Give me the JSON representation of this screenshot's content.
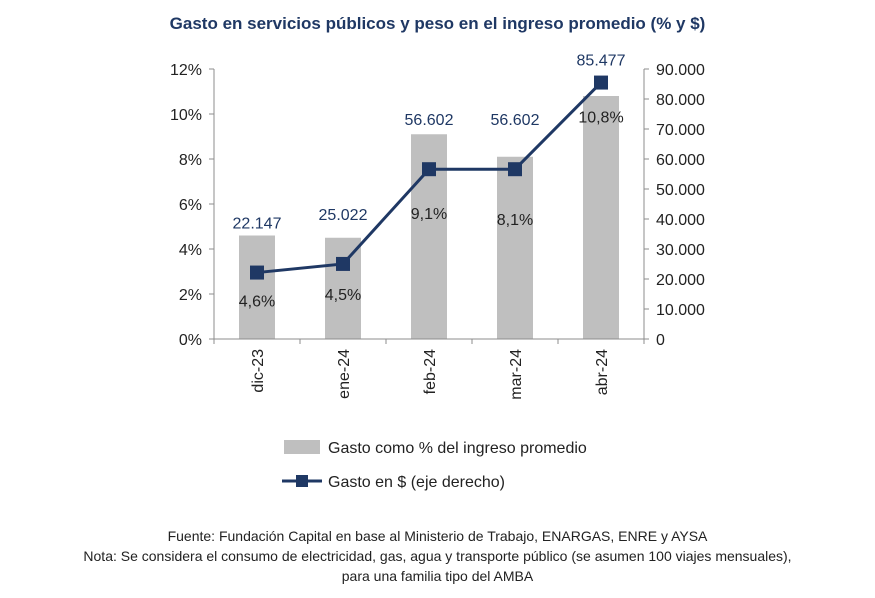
{
  "title": "Gasto en servicios públicos y peso en el ingreso promedio (% y $)",
  "chart_data": {
    "type": "bar",
    "categories": [
      "dic-23",
      "ene-24",
      "feb-24",
      "mar-24",
      "abr-24"
    ],
    "series": [
      {
        "name": "Gasto como % del ingreso promedio",
        "type": "bar",
        "axis": "left",
        "values": [
          4.6,
          4.5,
          9.1,
          8.1,
          10.8
        ],
        "labels": [
          "4,6%",
          "4,5%",
          "9,1%",
          "8,1%",
          "10,8%"
        ],
        "color": "#bfbfbf"
      },
      {
        "name": "Gasto en $ (eje derecho)",
        "type": "line",
        "axis": "right",
        "values": [
          22147,
          25022,
          56602,
          56602,
          85477
        ],
        "labels": [
          "22.147",
          "25.022",
          "56.602",
          "56.602",
          "85.477"
        ],
        "color": "#1f3864"
      }
    ],
    "y_left": {
      "ylim": [
        0,
        12
      ],
      "tick_values": [
        0,
        2,
        4,
        6,
        8,
        10,
        12
      ],
      "tick_labels": [
        "0%",
        "2%",
        "4%",
        "6%",
        "8%",
        "10%",
        "12%"
      ]
    },
    "y_right": {
      "ylim": [
        0,
        90000
      ],
      "tick_values": [
        0,
        10000,
        20000,
        30000,
        40000,
        50000,
        60000,
        70000,
        80000,
        90000
      ],
      "tick_labels": [
        "0",
        "10.000",
        "20.000",
        "30.000",
        "40.000",
        "50.000",
        "60.000",
        "70.000",
        "80.000",
        "90.000"
      ]
    },
    "grid": false,
    "legend_position": "bottom"
  },
  "notes": {
    "source": "Fuente: Fundación Capital en base al Ministerio de Trabajo, ENARGAS, ENRE y AYSA",
    "note_line1": "Nota: Se considera el consumo de electricidad, gas, agua y transporte público (se asumen 100 viajes mensuales),",
    "note_line2": "para una familia tipo del AMBA"
  }
}
